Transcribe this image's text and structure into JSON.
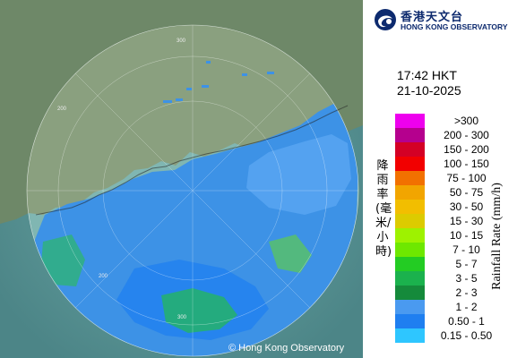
{
  "organization": {
    "name_cn": "香港天文台",
    "name_en": "HONG KONG OBSERVATORY"
  },
  "time": "17:42 HKT",
  "date": "21-10-2025",
  "legend": {
    "title_cn": "降雨率(毫米/小時)",
    "title_en": "Rainfall Rate (mm/h)",
    "entries": [
      {
        "label": ">300",
        "color": "#ee00ee"
      },
      {
        "label": "200 - 300",
        "color": "#b5008e"
      },
      {
        "label": "150 - 200",
        "color": "#d40025"
      },
      {
        "label": "100 - 150",
        "color": "#f20000"
      },
      {
        "label": "75 - 100",
        "color": "#f27100"
      },
      {
        "label": "50 - 75",
        "color": "#f2a500"
      },
      {
        "label": "30 - 50",
        "color": "#f2be00"
      },
      {
        "label": "15 - 30",
        "color": "#dccb00"
      },
      {
        "label": "10 - 15",
        "color": "#9ef200"
      },
      {
        "label": "7 - 10",
        "color": "#6ee800"
      },
      {
        "label": "5 - 7",
        "color": "#23cc23"
      },
      {
        "label": "3 - 5",
        "color": "#1bb24d"
      },
      {
        "label": "2 - 3",
        "color": "#158a3b"
      },
      {
        "label": "1 - 2",
        "color": "#4a9af0"
      },
      {
        "label": "0.50 - 1",
        "color": "#1f7ff0"
      },
      {
        "label": "0.15 - 0.50",
        "color": "#2ec6ff"
      }
    ]
  },
  "copyright": "© Hong Kong Observatory",
  "range_labels": [
    "300",
    "200",
    "300",
    "200"
  ],
  "colors": {
    "sea": "#5f9ea0",
    "land": "#778f72",
    "light_rain": "#3d92e6"
  }
}
